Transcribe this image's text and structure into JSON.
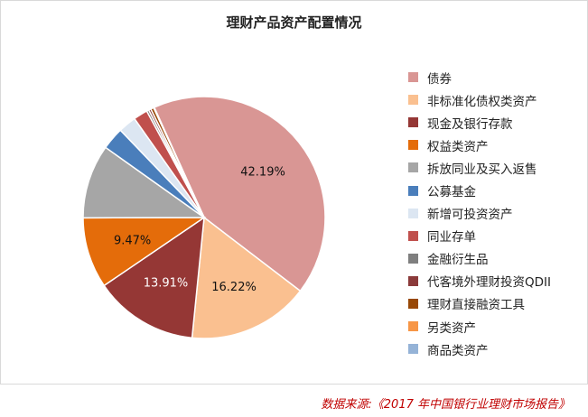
{
  "chart_data": {
    "type": "pie",
    "title": "理财产品资产配置情况",
    "slices": [
      {
        "label": "债券",
        "value": 42.19,
        "color": "#d99694",
        "data_label": "42.19%"
      },
      {
        "label": "非标准化债权类资产",
        "value": 16.22,
        "color": "#fac090",
        "data_label": "16.22%"
      },
      {
        "label": "现金及银行存款",
        "value": 13.91,
        "color": "#953735",
        "data_label": "13.91%"
      },
      {
        "label": "权益类资产",
        "value": 9.47,
        "color": "#e46c0a",
        "data_label": "9.47%"
      },
      {
        "label": "拆放同业及买入返售",
        "value": 9.9,
        "color": "#a6a6a6",
        "data_label": ""
      },
      {
        "label": "公募基金",
        "value": 3.0,
        "color": "#4a7ebb",
        "data_label": ""
      },
      {
        "label": "新增可投资资产",
        "value": 2.4,
        "color": "#dce6f2",
        "data_label": ""
      },
      {
        "label": "同业存单",
        "value": 1.9,
        "color": "#c0504d",
        "data_label": ""
      },
      {
        "label": "金融衍生品",
        "value": 0.3,
        "color": "#7f7f7f",
        "data_label": ""
      },
      {
        "label": "代客境外理财投资QDII",
        "value": 0.3,
        "color": "#8b3a3a",
        "data_label": ""
      },
      {
        "label": "理财直接融资工具",
        "value": 0.4,
        "color": "#984807",
        "data_label": ""
      },
      {
        "label": "另类资产",
        "value": 0.05,
        "color": "#f79646",
        "data_label": ""
      },
      {
        "label": "商品类资产",
        "value": 0.05,
        "color": "#95b3d7",
        "data_label": ""
      }
    ],
    "legend_position": "right"
  },
  "source": "数据来源:《2017 年中国银行业理财市场报告》"
}
